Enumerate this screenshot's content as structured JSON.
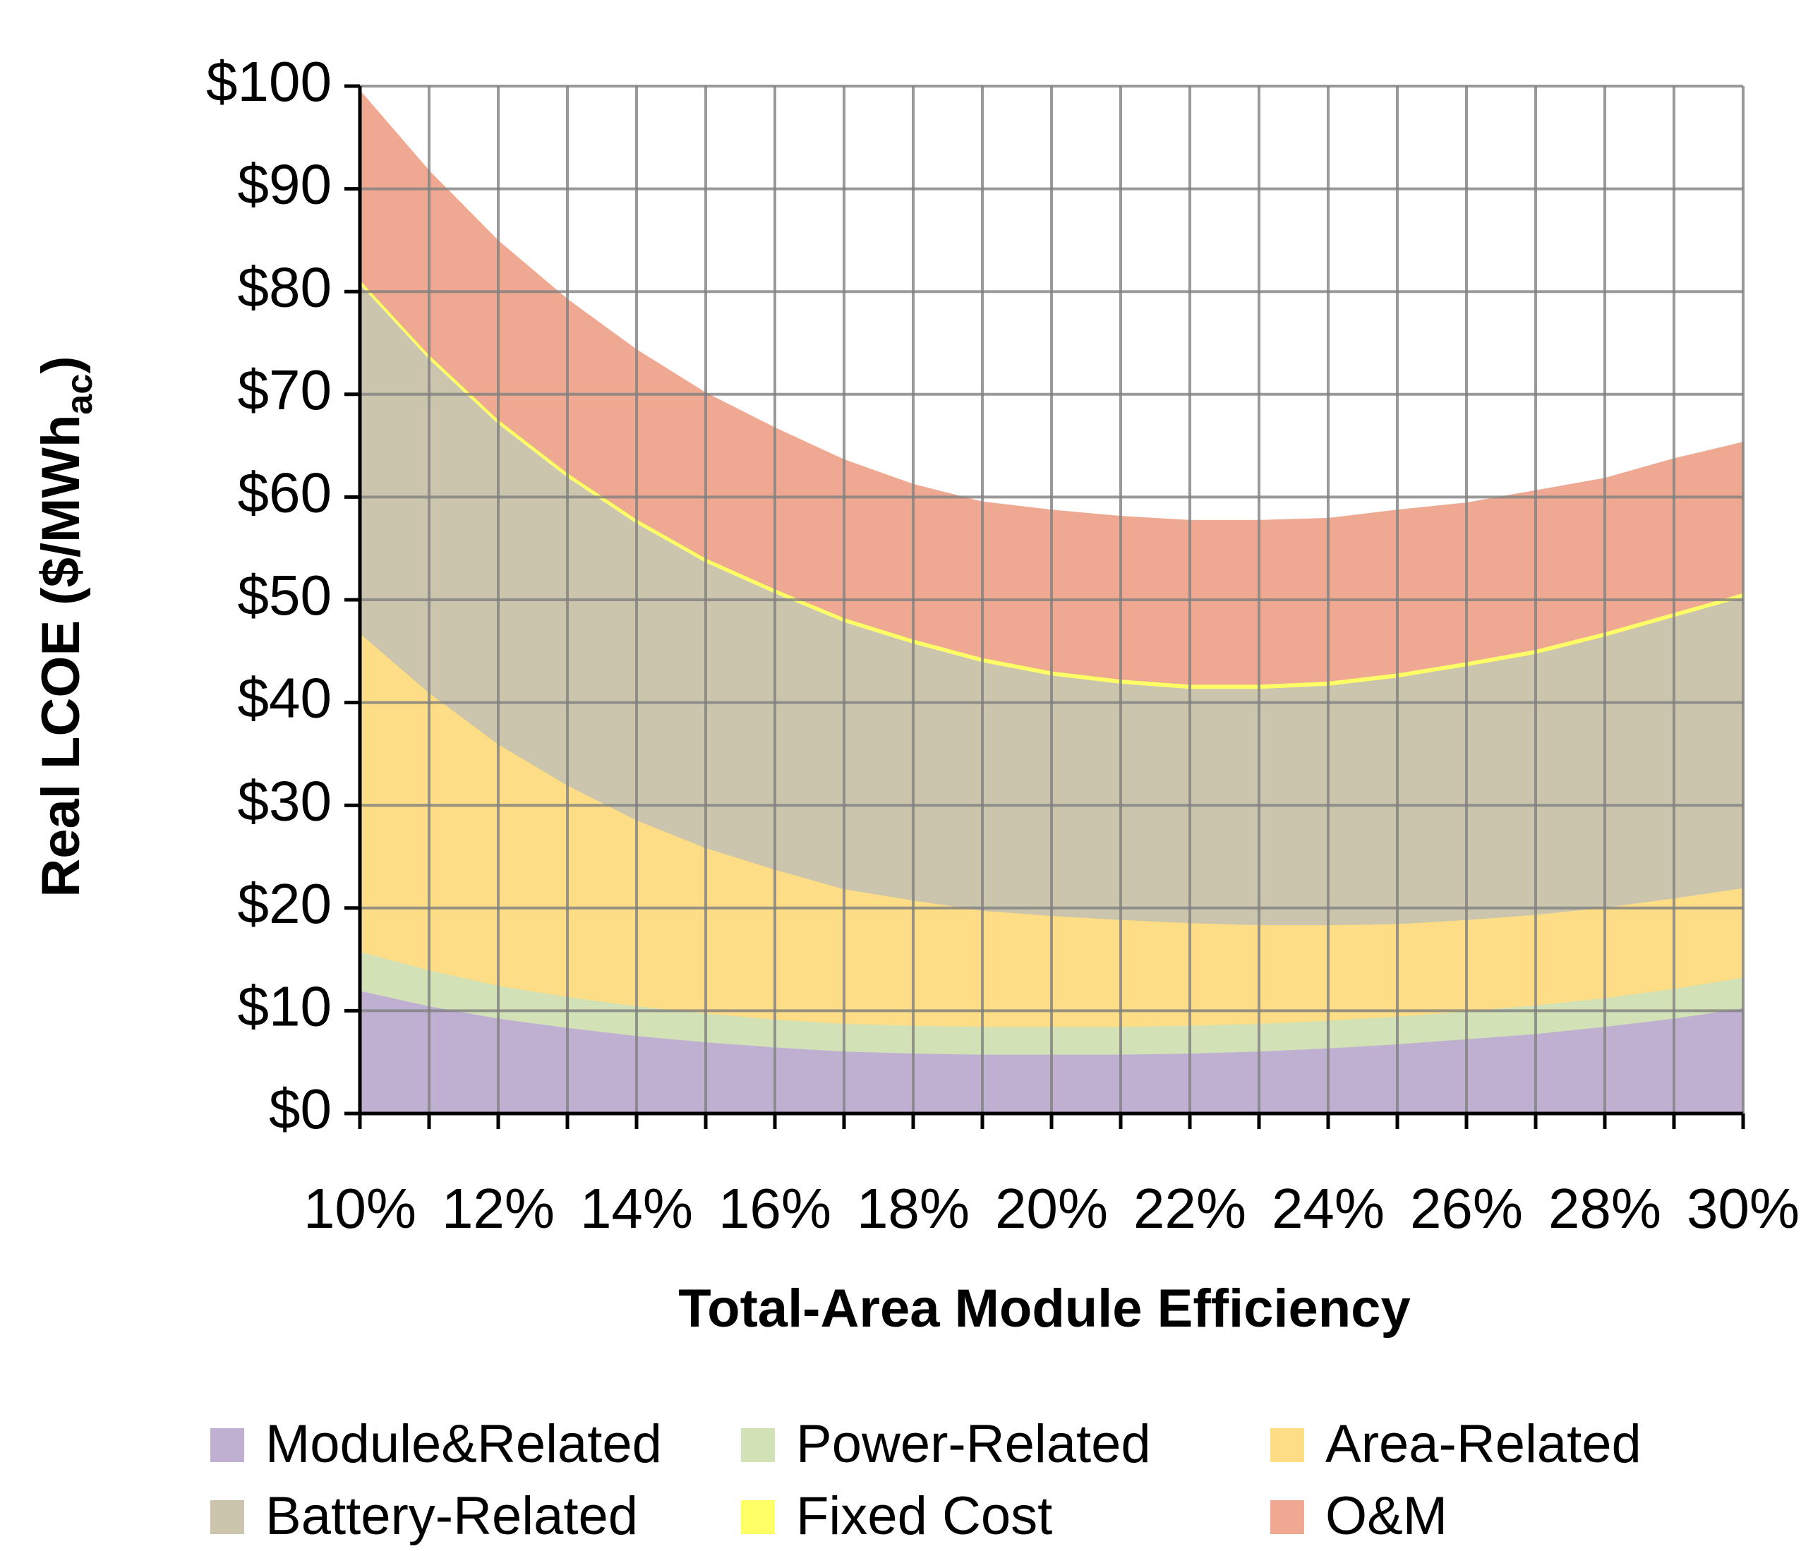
{
  "chart_data": {
    "type": "area",
    "stacked": true,
    "title": "",
    "xlabel": "Total-Area Module Efficiency",
    "ylabel": "Real LCOE ($/MWh",
    "ylabel_subscript": "ac",
    "ylabel_close": ")",
    "x": [
      10,
      11,
      12,
      13,
      14,
      15,
      16,
      17,
      18,
      19,
      20,
      21,
      22,
      23,
      24,
      25,
      26,
      27,
      28,
      29,
      30
    ],
    "x_tick_values": [
      10,
      12,
      14,
      16,
      18,
      20,
      22,
      24,
      26,
      28,
      30
    ],
    "x_tick_labels": [
      "10%",
      "12%",
      "14%",
      "16%",
      "18%",
      "20%",
      "22%",
      "24%",
      "26%",
      "28%",
      "30%"
    ],
    "xlim": [
      10,
      30
    ],
    "y_tick_values": [
      0,
      10,
      20,
      30,
      40,
      50,
      60,
      70,
      80,
      90,
      100
    ],
    "y_tick_labels": [
      "$0",
      "$10",
      "$20",
      "$30",
      "$40",
      "$50",
      "$60",
      "$70",
      "$80",
      "$90",
      "$100"
    ],
    "ylim": [
      0,
      100
    ],
    "grid": true,
    "legend_position": "bottom",
    "series": [
      {
        "name": "Module&Related",
        "color": "#BFB0D2",
        "values": [
          12.0,
          10.5,
          9.3,
          8.4,
          7.6,
          7.0,
          6.5,
          6.1,
          5.9,
          5.8,
          5.8,
          5.8,
          5.9,
          6.1,
          6.4,
          6.8,
          7.3,
          7.8,
          8.5,
          9.3,
          10.3
        ]
      },
      {
        "name": "Power-Related",
        "color": "#D3E1B6",
        "values": [
          3.8,
          3.5,
          3.2,
          3.0,
          2.9,
          2.8,
          2.7,
          2.7,
          2.7,
          2.7,
          2.7,
          2.7,
          2.7,
          2.7,
          2.7,
          2.7,
          2.7,
          2.8,
          2.8,
          2.9,
          3.0
        ]
      },
      {
        "name": "Area-Related",
        "color": "#FDDD85",
        "values": [
          31.0,
          27.0,
          23.5,
          20.6,
          18.1,
          16.1,
          14.6,
          13.1,
          12.2,
          11.3,
          10.8,
          10.4,
          10.0,
          9.6,
          9.3,
          9.0,
          8.9,
          8.8,
          8.8,
          8.8,
          8.7
        ]
      },
      {
        "name": "Battery-Related",
        "color": "#CBC5AD",
        "values": [
          34.0,
          32.5,
          31.2,
          30.0,
          28.9,
          27.8,
          26.9,
          26.0,
          25.0,
          24.2,
          23.4,
          23.0,
          22.8,
          23.0,
          23.3,
          24.0,
          24.7,
          25.4,
          26.4,
          27.4,
          28.3
        ]
      },
      {
        "name": "Fixed Cost",
        "color": "#FFFF66",
        "values": [
          0.4,
          0.4,
          0.4,
          0.4,
          0.4,
          0.4,
          0.4,
          0.4,
          0.4,
          0.4,
          0.4,
          0.4,
          0.4,
          0.4,
          0.4,
          0.4,
          0.4,
          0.4,
          0.4,
          0.4,
          0.4
        ]
      },
      {
        "name": "O&M",
        "color": "#EFA892",
        "values": [
          18.3,
          17.8,
          17.3,
          16.8,
          16.4,
          16.0,
          15.6,
          15.3,
          15.0,
          15.1,
          15.6,
          15.8,
          15.9,
          15.9,
          15.8,
          15.8,
          15.4,
          15.4,
          14.9,
          14.9,
          14.6
        ]
      }
    ]
  }
}
